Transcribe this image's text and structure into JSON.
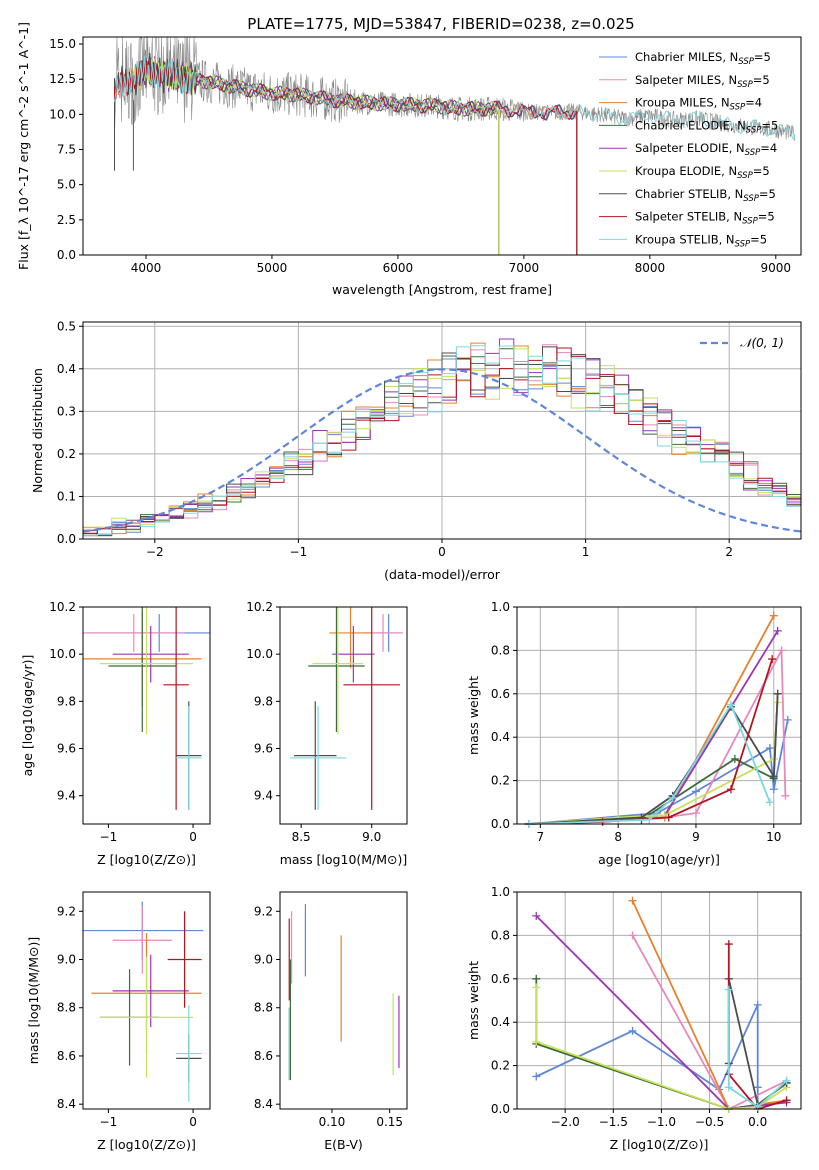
{
  "title": "PLATE=1775, MJD=53847, FIBERID=0238, z=0.025",
  "colors": [
    "#5f87d9",
    "#e8802c",
    "#e888bc",
    "#3c6b3e",
    "#9b35b5",
    "#c7e25b",
    "#4d4d4d",
    "#b21520",
    "#7ed7e0"
  ],
  "chart_data": [
    {
      "id": "spectrum",
      "type": "line",
      "title": "PLATE=1775, MJD=53847, FIBERID=0238, z=0.025",
      "xlabel": "wavelength [Angstrom, rest frame]",
      "ylabel": "Flux [f_λ 10^-17 erg cm^-2 s^-1 A^-1]",
      "xlim": [
        3500,
        9200
      ],
      "ylim": [
        0,
        15.5
      ],
      "xticks": [
        4000,
        5000,
        6000,
        7000,
        8000,
        9000
      ],
      "yticks": [
        0.0,
        2.5,
        5.0,
        7.5,
        10.0,
        12.5,
        15.0
      ],
      "legend_position": "top-right",
      "legend": [
        {
          "text": "Chabrier MILES, N",
          "sub": "SSP",
          "tail": "=5",
          "color": "#5f87d9"
        },
        {
          "text": "Salpeter MILES, N",
          "sub": "SSP",
          "tail": "=5",
          "color": "#e888bc"
        },
        {
          "text": "Kroupa MILES, N",
          "sub": "SSP",
          "tail": "=4",
          "color": "#e8802c"
        },
        {
          "text": "Chabrier ELODIE, N",
          "sub": "SSP",
          "tail": "=5",
          "color": "#3c6b3e"
        },
        {
          "text": "Salpeter ELODIE, N",
          "sub": "SSP",
          "tail": "=4",
          "color": "#9b35b5"
        },
        {
          "text": "Kroupa ELODIE, N",
          "sub": "SSP",
          "tail": "=5",
          "color": "#c7e25b"
        },
        {
          "text": "Chabrier STELIB, N",
          "sub": "SSP",
          "tail": "=5",
          "color": "#4d4d4d"
        },
        {
          "text": "Salpeter STELIB, N",
          "sub": "SSP",
          "tail": "=5",
          "color": "#b21520"
        },
        {
          "text": "Kroupa STELIB, N",
          "sub": "SSP",
          "tail": "=5",
          "color": "#7ed7e0"
        }
      ],
      "continuum": {
        "x": [
          3750,
          3800,
          3900,
          4000,
          4100,
          4300,
          4500,
          4800,
          5000,
          5200,
          5500,
          5800,
          6000,
          6300,
          6500,
          6800,
          7000,
          7200,
          7400,
          7600,
          7800,
          8000,
          8200,
          8400,
          8600,
          8800,
          9000,
          9150
        ],
        "y": [
          11.5,
          12.3,
          12.5,
          13.1,
          12.9,
          12.6,
          12.3,
          11.8,
          11.5,
          11.4,
          11.0,
          10.8,
          10.7,
          10.6,
          10.4,
          10.4,
          10.2,
          10.1,
          10.2,
          10.0,
          9.7,
          9.9,
          9.6,
          9.7,
          9.3,
          9.1,
          8.9,
          8.6
        ]
      },
      "model_endpoints": [
        {
          "series": "Chabrier MILES",
          "x_start": 3750,
          "x_end": 7420
        },
        {
          "series": "Salpeter MILES",
          "x_start": 3750,
          "x_end": 7420
        },
        {
          "series": "Kroupa MILES",
          "x_start": 3750,
          "x_end": 7420
        },
        {
          "series": "Chabrier ELODIE",
          "x_start": 3900,
          "x_end": 6800
        },
        {
          "series": "Salpeter ELODIE",
          "x_start": 3900,
          "x_end": 6800
        },
        {
          "series": "Kroupa ELODIE",
          "x_start": 3900,
          "x_end": 6800
        },
        {
          "series": "Chabrier STELIB",
          "x_start": 3750,
          "x_end": 7420
        },
        {
          "series": "Salpeter STELIB",
          "x_start": 3750,
          "x_end": 7420
        },
        {
          "series": "Kroupa STELIB",
          "x_start": 3750,
          "x_end": 9150
        }
      ]
    },
    {
      "id": "residuals",
      "type": "line",
      "xlabel": "(data-model)/error",
      "ylabel": "Normed distribution",
      "xlim": [
        -2.5,
        2.5
      ],
      "ylim": [
        0,
        0.51
      ],
      "xticks": [
        -2,
        -1,
        0,
        1,
        2
      ],
      "yticks": [
        0.0,
        0.1,
        0.2,
        0.3,
        0.4,
        0.5
      ],
      "grid": true,
      "legend_position": "top-right",
      "legend": [
        {
          "text": "𝒩(0, 1)",
          "color": "#5f87d9",
          "style": "dashed"
        }
      ],
      "bin_width": 0.1,
      "bin_start": -2.5,
      "histogram_heights": [
        0.02,
        0.02,
        0.03,
        0.03,
        0.04,
        0.05,
        0.06,
        0.07,
        0.08,
        0.09,
        0.1,
        0.12,
        0.14,
        0.15,
        0.17,
        0.19,
        0.21,
        0.23,
        0.25,
        0.27,
        0.29,
        0.31,
        0.33,
        0.35,
        0.36,
        0.38,
        0.39,
        0.4,
        0.4,
        0.41,
        0.41,
        0.41,
        0.4,
        0.39,
        0.38,
        0.37,
        0.35,
        0.33,
        0.31,
        0.29,
        0.27,
        0.25,
        0.23,
        0.21,
        0.19,
        0.17,
        0.15,
        0.13,
        0.11,
        0.09
      ]
    },
    {
      "id": "age-vs-Z",
      "type": "scatter",
      "xlabel": "Z [log10(Z/Z⊙)]",
      "ylabel": "age [log10(age/yr)]",
      "xlim": [
        -1.3,
        0.2
      ],
      "ylim": [
        9.28,
        10.2
      ],
      "xticks": [
        -1,
        0
      ],
      "yticks": [
        9.4,
        9.6,
        9.8,
        10.0,
        10.2
      ],
      "points": [
        {
          "x": -0.4,
          "y": 10.09,
          "xerr": 0.85,
          "yerr": 0.08,
          "color": "#5f87d9"
        },
        {
          "x": -0.7,
          "y": 10.09,
          "xerr": 0.6,
          "yerr": 0.08,
          "color": "#e888bc"
        },
        {
          "x": -0.6,
          "y": 9.98,
          "xerr": 0.7,
          "yerr": 0.2,
          "color": "#e8802c"
        },
        {
          "x": -0.6,
          "y": 9.95,
          "xerr": 0.4,
          "yerr": 0.28,
          "color": "#3c6b3e"
        },
        {
          "x": -0.5,
          "y": 10.0,
          "xerr": 0.45,
          "yerr": 0.12,
          "color": "#9b35b5"
        },
        {
          "x": -0.55,
          "y": 9.96,
          "xerr": 0.55,
          "yerr": 0.3,
          "color": "#c7e25b"
        },
        {
          "x": -0.05,
          "y": 9.57,
          "xerr": 0.15,
          "yerr": 0.23,
          "color": "#4d4d4d"
        },
        {
          "x": -0.2,
          "y": 9.87,
          "xerr": 0.15,
          "yerr": 0.53,
          "color": "#b21520"
        },
        {
          "x": -0.05,
          "y": 9.56,
          "xerr": 0.15,
          "yerr": 0.22,
          "color": "#7ed7e0"
        }
      ]
    },
    {
      "id": "age-vs-mass",
      "type": "scatter",
      "xlabel": "mass [log10(M/M⊙)]",
      "ylabel": "",
      "xlim": [
        8.35,
        9.25
      ],
      "ylim": [
        9.28,
        10.2
      ],
      "xticks": [
        8.5,
        9.0
      ],
      "yticks": [
        9.4,
        9.6,
        9.8,
        10.0,
        10.2
      ],
      "points": [
        {
          "x": 9.12,
          "y": 10.09,
          "xerr": 0.1,
          "yerr": 0.08,
          "color": "#5f87d9"
        },
        {
          "x": 9.08,
          "y": 10.09,
          "xerr": 0.14,
          "yerr": 0.08,
          "color": "#e888bc"
        },
        {
          "x": 8.85,
          "y": 10.09,
          "xerr": 0.15,
          "yerr": 0.15,
          "color": "#e8802c"
        },
        {
          "x": 8.75,
          "y": 9.95,
          "xerr": 0.2,
          "yerr": 0.28,
          "color": "#3c6b3e"
        },
        {
          "x": 8.87,
          "y": 10.0,
          "xerr": 0.15,
          "yerr": 0.12,
          "color": "#9b35b5"
        },
        {
          "x": 8.76,
          "y": 9.96,
          "xerr": 0.18,
          "yerr": 0.3,
          "color": "#c7e25b"
        },
        {
          "x": 8.6,
          "y": 9.57,
          "xerr": 0.15,
          "yerr": 0.23,
          "color": "#4d4d4d"
        },
        {
          "x": 9.0,
          "y": 9.87,
          "xerr": 0.2,
          "yerr": 0.53,
          "color": "#b21520"
        },
        {
          "x": 8.62,
          "y": 9.56,
          "xerr": 0.2,
          "yerr": 0.22,
          "color": "#7ed7e0"
        }
      ]
    },
    {
      "id": "weight-vs-age",
      "type": "line",
      "xlabel": "age [log10(age/yr)]",
      "ylabel": "mass weight",
      "xlim": [
        6.7,
        10.35
      ],
      "ylim": [
        0,
        1.0
      ],
      "xticks": [
        7,
        8,
        9,
        10
      ],
      "yticks": [
        0.0,
        0.2,
        0.4,
        0.6,
        0.8,
        1.0
      ],
      "grid": true,
      "series": [
        {
          "name": "Chabrier MILES",
          "color": "#5f87d9",
          "x": [
            6.85,
            8.5,
            9.0,
            9.95,
            10.0,
            10.18
          ],
          "y": [
            0.0,
            0.05,
            0.15,
            0.35,
            0.16,
            0.48
          ]
        },
        {
          "name": "Salpeter MILES",
          "color": "#e888bc",
          "x": [
            6.85,
            8.6,
            9.0,
            10.1,
            10.15
          ],
          "y": [
            0.0,
            0.03,
            0.05,
            0.8,
            0.13
          ]
        },
        {
          "name": "Kroupa MILES",
          "color": "#e8802c",
          "x": [
            6.85,
            8.6,
            10.0
          ],
          "y": [
            0.0,
            0.03,
            0.96
          ]
        },
        {
          "name": "Chabrier ELODIE",
          "color": "#3c6b3e",
          "x": [
            6.85,
            8.3,
            9.5,
            10.0,
            10.05
          ],
          "y": [
            0.0,
            0.02,
            0.3,
            0.21,
            0.6
          ]
        },
        {
          "name": "Salpeter ELODIE",
          "color": "#9b35b5",
          "x": [
            6.85,
            8.6,
            10.05
          ],
          "y": [
            0.0,
            0.04,
            0.89
          ]
        },
        {
          "name": "Kroupa ELODIE",
          "color": "#c7e25b",
          "x": [
            6.85,
            8.0,
            8.6,
            10.0,
            10.05
          ],
          "y": [
            0.0,
            0.03,
            0.04,
            0.3,
            0.56
          ]
        },
        {
          "name": "Chabrier STELIB",
          "color": "#4d4d4d",
          "x": [
            6.85,
            8.3,
            8.7,
            9.45,
            10.0,
            10.05
          ],
          "y": [
            0.0,
            0.03,
            0.13,
            0.54,
            0.22,
            0.6
          ]
        },
        {
          "name": "Salpeter STELIB",
          "color": "#b21520",
          "x": [
            6.85,
            7.8,
            8.65,
            9.45,
            9.98
          ],
          "y": [
            0.0,
            0.01,
            0.03,
            0.16,
            0.76
          ]
        },
        {
          "name": "Kroupa STELIB",
          "color": "#7ed7e0",
          "x": [
            6.85,
            8.4,
            8.7,
            9.45,
            9.95
          ],
          "y": [
            0.0,
            0.02,
            0.12,
            0.55,
            0.1
          ]
        }
      ]
    },
    {
      "id": "mass-vs-Z",
      "type": "scatter",
      "xlabel": "Z [log10(Z/Z⊙)]",
      "ylabel": "mass [log10(M/M⊙)]",
      "xlim": [
        -1.3,
        0.2
      ],
      "ylim": [
        8.38,
        9.28
      ],
      "xticks": [
        -1,
        0
      ],
      "yticks": [
        8.4,
        8.6,
        8.8,
        9.0,
        9.2
      ],
      "points": [
        {
          "x": -0.6,
          "y": 9.12,
          "xerr": 0.72,
          "yerr": 0.12,
          "color": "#5f87d9"
        },
        {
          "x": -0.6,
          "y": 9.08,
          "xerr": 0.35,
          "yerr": 0.14,
          "color": "#e888bc"
        },
        {
          "x": -0.55,
          "y": 8.86,
          "xerr": 0.65,
          "yerr": 0.25,
          "color": "#e8802c"
        },
        {
          "x": -0.75,
          "y": 8.76,
          "xerr": 0.35,
          "yerr": 0.2,
          "color": "#3c6b3e"
        },
        {
          "x": -0.5,
          "y": 8.87,
          "xerr": 0.45,
          "yerr": 0.15,
          "color": "#9b35b5"
        },
        {
          "x": -0.55,
          "y": 8.76,
          "xerr": 0.55,
          "yerr": 0.25,
          "color": "#c7e25b"
        },
        {
          "x": -0.05,
          "y": 8.59,
          "xerr": 0.15,
          "yerr": 0.1,
          "color": "#4d4d4d"
        },
        {
          "x": -0.1,
          "y": 9.0,
          "xerr": 0.2,
          "yerr": 0.2,
          "color": "#b21520"
        },
        {
          "x": -0.05,
          "y": 8.61,
          "xerr": 0.15,
          "yerr": 0.2,
          "color": "#7ed7e0"
        }
      ]
    },
    {
      "id": "mass-vs-ebv",
      "type": "scatter",
      "xlabel": "E(B-V)",
      "ylabel": "",
      "xlim": [
        0.055,
        0.165
      ],
      "ylim": [
        8.38,
        9.28
      ],
      "xticks": [
        0.1,
        0.15
      ],
      "yticks": [
        8.4,
        8.6,
        8.8,
        9.0,
        9.2
      ],
      "points": [
        {
          "x": 0.077,
          "y": 9.08,
          "yerr": 0.15,
          "color": "#5f87d9"
        },
        {
          "x": 0.065,
          "y": 9.05,
          "yerr": 0.15,
          "color": "#e888bc"
        },
        {
          "x": 0.108,
          "y": 8.88,
          "yerr": 0.22,
          "color": "#e8802c"
        },
        {
          "x": 0.064,
          "y": 8.75,
          "yerr": 0.25,
          "color": "#3c6b3e"
        },
        {
          "x": 0.158,
          "y": 8.7,
          "yerr": 0.15,
          "color": "#9b35b5"
        },
        {
          "x": 0.153,
          "y": 8.69,
          "yerr": 0.17,
          "color": "#c7e25b"
        },
        {
          "x": 0.063,
          "y": 8.65,
          "yerr": 0.15,
          "color": "#4d4d4d"
        },
        {
          "x": 0.063,
          "y": 9.0,
          "yerr": 0.17,
          "color": "#b21520"
        },
        {
          "x": 0.063,
          "y": 8.65,
          "yerr": 0.15,
          "color": "#7ed7e0"
        }
      ]
    },
    {
      "id": "weight-vs-Z",
      "type": "line",
      "xlabel": "Z [log10(Z/Z⊙)]",
      "ylabel": "mass weight",
      "xlim": [
        -2.5,
        0.45
      ],
      "ylim": [
        0,
        1.0
      ],
      "xticks": [
        -2.0,
        -1.5,
        -1.0,
        -0.5,
        0.0
      ],
      "yticks": [
        0.0,
        0.2,
        0.4,
        0.6,
        0.8,
        1.0
      ],
      "grid": true,
      "series": [
        {
          "name": "Chabrier MILES",
          "color": "#5f87d9",
          "x": [
            -2.3,
            -1.3,
            -0.4,
            0.0,
            0.0,
            0.0
          ],
          "y": [
            0.15,
            0.36,
            0.09,
            0.48,
            0.1,
            0.01
          ]
        },
        {
          "name": "Salpeter MILES",
          "color": "#e888bc",
          "x": [
            -1.3,
            -0.3,
            0.3
          ],
          "y": [
            0.8,
            0.0,
            0.13
          ]
        },
        {
          "name": "Kroupa MILES",
          "color": "#e8802c",
          "x": [
            -1.3,
            -0.3,
            0.3
          ],
          "y": [
            0.96,
            0.0,
            0.04
          ]
        },
        {
          "name": "Chabrier ELODIE",
          "color": "#3c6b3e",
          "x": [
            -2.3,
            -2.3,
            -0.3,
            0.0,
            0.3
          ],
          "y": [
            0.6,
            0.3,
            0.0,
            0.02,
            0.12
          ]
        },
        {
          "name": "Salpeter ELODIE",
          "color": "#9b35b5",
          "x": [
            -2.3,
            -0.3,
            0.3
          ],
          "y": [
            0.89,
            0.0,
            0.03
          ]
        },
        {
          "name": "Kroupa ELODIE",
          "color": "#c7e25b",
          "x": [
            -2.3,
            -2.3,
            -0.3,
            0.0,
            0.3
          ],
          "y": [
            0.56,
            0.31,
            0.0,
            0.01,
            0.1
          ]
        },
        {
          "name": "Chabrier STELIB",
          "color": "#4d4d4d",
          "x": [
            -0.3,
            -0.3,
            0.0,
            0.3
          ],
          "y": [
            0.21,
            0.6,
            0.02,
            0.12
          ]
        },
        {
          "name": "Salpeter STELIB",
          "color": "#b21520",
          "x": [
            -0.3,
            -0.3,
            0.0,
            0.3
          ],
          "y": [
            0.76,
            0.16,
            0.0,
            0.04
          ]
        },
        {
          "name": "Kroupa STELIB",
          "color": "#7ed7e0",
          "x": [
            -0.3,
            -0.3,
            0.0,
            0.3
          ],
          "y": [
            0.55,
            0.1,
            0.01,
            0.13
          ]
        }
      ]
    }
  ]
}
